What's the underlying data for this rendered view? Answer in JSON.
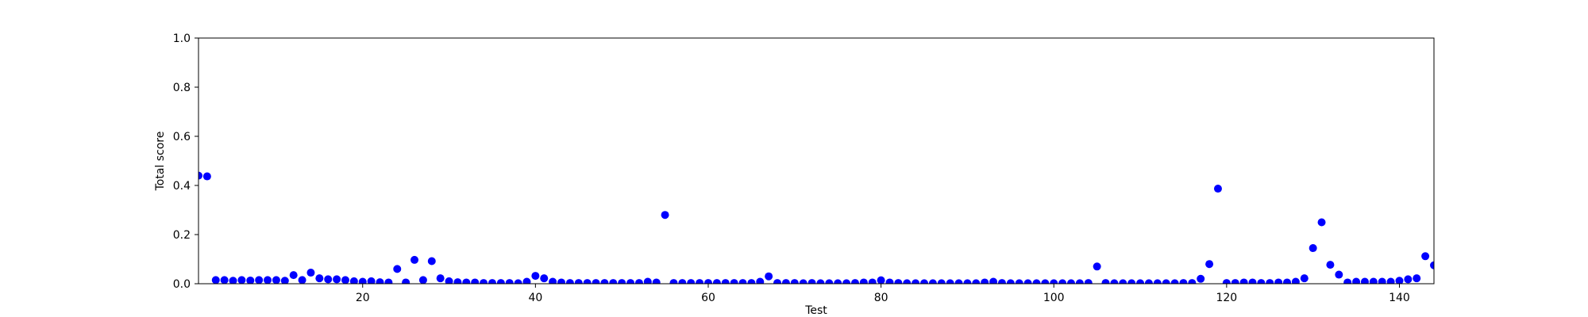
{
  "chart_data": {
    "type": "scatter",
    "title": "",
    "xlabel": "Test",
    "ylabel": "Total score",
    "xlim": [
      1,
      144
    ],
    "ylim": [
      0,
      1
    ],
    "grid": false,
    "marker_color": "#0000ff",
    "x_ticks": [
      20,
      40,
      60,
      80,
      100,
      120,
      140
    ],
    "y_ticks": [
      0.0,
      0.2,
      0.4,
      0.6,
      0.8,
      1.0
    ],
    "x_tick_labels": [
      "20",
      "40",
      "60",
      "80",
      "100",
      "120",
      "140"
    ],
    "y_tick_labels": [
      "0.0",
      "0.2",
      "0.4",
      "0.6",
      "0.8",
      "1.0"
    ],
    "series": [
      {
        "x": [
          1,
          2,
          3,
          4,
          5,
          6,
          7,
          8,
          9,
          10,
          11,
          12,
          13,
          14,
          15,
          16,
          17,
          18,
          19,
          20,
          21,
          22,
          23,
          24,
          25,
          26,
          27,
          28,
          29,
          30,
          31,
          32,
          33,
          34,
          35,
          36,
          37,
          38,
          39,
          40,
          41,
          42,
          43,
          44,
          45,
          46,
          47,
          48,
          49,
          50,
          51,
          52,
          53,
          54,
          55,
          56,
          57,
          58,
          59,
          60,
          61,
          62,
          63,
          64,
          65,
          66,
          67,
          68,
          69,
          70,
          71,
          72,
          73,
          74,
          75,
          76,
          77,
          78,
          79,
          80,
          81,
          82,
          83,
          84,
          85,
          86,
          87,
          88,
          89,
          90,
          91,
          92,
          93,
          94,
          95,
          96,
          97,
          98,
          99,
          100,
          101,
          102,
          103,
          104,
          105,
          106,
          107,
          108,
          109,
          110,
          111,
          112,
          113,
          114,
          115,
          116,
          117,
          118,
          119,
          120,
          121,
          122,
          123,
          124,
          125,
          126,
          127,
          128,
          129,
          130,
          131,
          132,
          133,
          134,
          135,
          136,
          137,
          138,
          139,
          140,
          141,
          142,
          143,
          144
        ],
        "y": [
          0.44,
          0.437,
          0.015,
          0.015,
          0.012,
          0.015,
          0.013,
          0.015,
          0.015,
          0.015,
          0.012,
          0.035,
          0.015,
          0.045,
          0.022,
          0.018,
          0.018,
          0.015,
          0.01,
          0.008,
          0.01,
          0.006,
          0.005,
          0.06,
          0.005,
          0.097,
          0.015,
          0.092,
          0.022,
          0.01,
          0.006,
          0.005,
          0.005,
          0.003,
          0.003,
          0.003,
          0.003,
          0.002,
          0.008,
          0.032,
          0.022,
          0.008,
          0.005,
          0.003,
          0.003,
          0.003,
          0.003,
          0.003,
          0.003,
          0.003,
          0.003,
          0.003,
          0.008,
          0.005,
          0.28,
          0.003,
          0.003,
          0.003,
          0.003,
          0.003,
          0.003,
          0.003,
          0.003,
          0.003,
          0.003,
          0.008,
          0.03,
          0.003,
          0.003,
          0.003,
          0.002,
          0.003,
          0.002,
          0.002,
          0.002,
          0.002,
          0.003,
          0.005,
          0.005,
          0.014,
          0.005,
          0.003,
          0.002,
          0.002,
          0.002,
          0.002,
          0.002,
          0.002,
          0.002,
          0.002,
          0.002,
          0.005,
          0.008,
          0.003,
          0.002,
          0.002,
          0.002,
          0.002,
          0.002,
          0.002,
          0.002,
          0.002,
          0.002,
          0.003,
          0.07,
          0.003,
          0.002,
          0.002,
          0.002,
          0.002,
          0.002,
          0.002,
          0.002,
          0.002,
          0.003,
          0.003,
          0.02,
          0.08,
          0.387,
          0.003,
          0.003,
          0.005,
          0.005,
          0.003,
          0.003,
          0.005,
          0.005,
          0.008,
          0.022,
          0.145,
          0.25,
          0.077,
          0.037,
          0.005,
          0.008,
          0.008,
          0.008,
          0.008,
          0.008,
          0.012,
          0.018,
          0.022,
          0.112,
          0.075
        ]
      }
    ]
  }
}
